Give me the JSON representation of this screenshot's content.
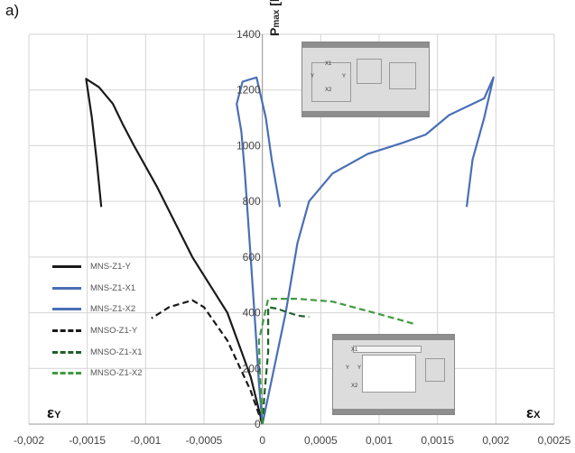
{
  "panel_label": "a)",
  "axis_labels": {
    "vertical": {
      "main": "P",
      "sub": "max",
      "unit": " [kN]"
    },
    "left": {
      "main": "ε",
      "sub": "Y"
    },
    "right": {
      "main": "ε",
      "sub": "X"
    }
  },
  "inset_top_labels": [
    "X1",
    "Y",
    "Y",
    "X2"
  ],
  "inset_bottom_labels": [
    "X1",
    "Y",
    "Y",
    "X2"
  ],
  "colors": {
    "black": "#1a1a1a",
    "blue": "#4a6fb5",
    "dark_green": "#1f5f2a",
    "light_green": "#3f9a3f"
  },
  "chart_data": {
    "type": "line",
    "xlim": [
      -0.002,
      0.0025
    ],
    "ylim": [
      0,
      1400
    ],
    "x_ticks": [
      "-0,002",
      "-0,0015",
      "-0,001",
      "-0,0005",
      "0",
      "0,0005",
      "0,001",
      "0,0015",
      "0,002",
      "0,0025"
    ],
    "y_ticks": [
      "0",
      "200",
      "400",
      "600",
      "800",
      "1000",
      "1200",
      "1400"
    ],
    "grid": true,
    "legend_position": "left",
    "series": [
      {
        "name": "MNS-Z1-Y",
        "color": "#1a1a1a",
        "dash": "solid",
        "points": [
          [
            0,
            0
          ],
          [
            -0.0001,
            170
          ],
          [
            -0.0003,
            400
          ],
          [
            -0.0006,
            600
          ],
          [
            -0.0009,
            850
          ],
          [
            -0.0011,
            1000
          ],
          [
            -0.0012,
            1080
          ],
          [
            -0.00128,
            1150
          ],
          [
            -0.0014,
            1210
          ],
          [
            -0.00151,
            1240
          ],
          [
            -0.00146,
            1100
          ],
          [
            -0.00142,
            950
          ],
          [
            -0.00138,
            780
          ]
        ]
      },
      {
        "name": "MNS-Z1-X1",
        "color": "#4a6fb5",
        "dash": "solid",
        "points": [
          [
            0,
            0
          ],
          [
            -3e-05,
            150
          ],
          [
            -6e-05,
            350
          ],
          [
            -0.0001,
            600
          ],
          [
            -0.00015,
            900
          ],
          [
            -0.00018,
            1050
          ],
          [
            -0.00022,
            1150
          ],
          [
            -0.00017,
            1230
          ],
          [
            -5e-05,
            1245
          ],
          [
            3e-05,
            1100
          ],
          [
            8e-05,
            950
          ],
          [
            0.00015,
            780
          ]
        ]
      },
      {
        "name": "MNS-Z1-X2",
        "color": "#4a6fb5",
        "dash": "solid",
        "points": [
          [
            0,
            0
          ],
          [
            0.0001,
            200
          ],
          [
            0.0002,
            400
          ],
          [
            0.0003,
            650
          ],
          [
            0.0004,
            800
          ],
          [
            0.0006,
            900
          ],
          [
            0.0009,
            970
          ],
          [
            0.0012,
            1010
          ],
          [
            0.0014,
            1040
          ],
          [
            0.0016,
            1110
          ],
          [
            0.0019,
            1170
          ],
          [
            0.00198,
            1245
          ],
          [
            0.0019,
            1100
          ],
          [
            0.0018,
            950
          ],
          [
            0.00175,
            780
          ]
        ]
      },
      {
        "name": "MNSO-Z1-Y",
        "color": "#1a1a1a",
        "dash": "dashed",
        "points": [
          [
            0,
            0
          ],
          [
            -0.0001,
            120
          ],
          [
            -0.0003,
            300
          ],
          [
            -0.0005,
            420
          ],
          [
            -0.0006,
            445
          ],
          [
            -0.0008,
            420
          ],
          [
            -0.00095,
            380
          ]
        ]
      },
      {
        "name": "MNSO-Z1-X1",
        "color": "#1f5f2a",
        "dash": "dashed",
        "points": [
          [
            0,
            0
          ],
          [
            2e-05,
            120
          ],
          [
            5e-05,
            260
          ],
          [
            5e-05,
            420
          ],
          [
            0.00012,
            415
          ],
          [
            0.0003,
            390
          ],
          [
            0.0004,
            385
          ]
        ]
      },
      {
        "name": "MNSO-Z1-X2",
        "color": "#3f9a3f",
        "dash": "dashed",
        "points": [
          [
            0,
            0
          ],
          [
            -2e-05,
            180
          ],
          [
            -3e-05,
            300
          ],
          [
            5e-05,
            450
          ],
          [
            0.0003,
            450
          ],
          [
            0.0006,
            440
          ],
          [
            0.001,
            395
          ],
          [
            0.0013,
            360
          ]
        ]
      }
    ]
  }
}
